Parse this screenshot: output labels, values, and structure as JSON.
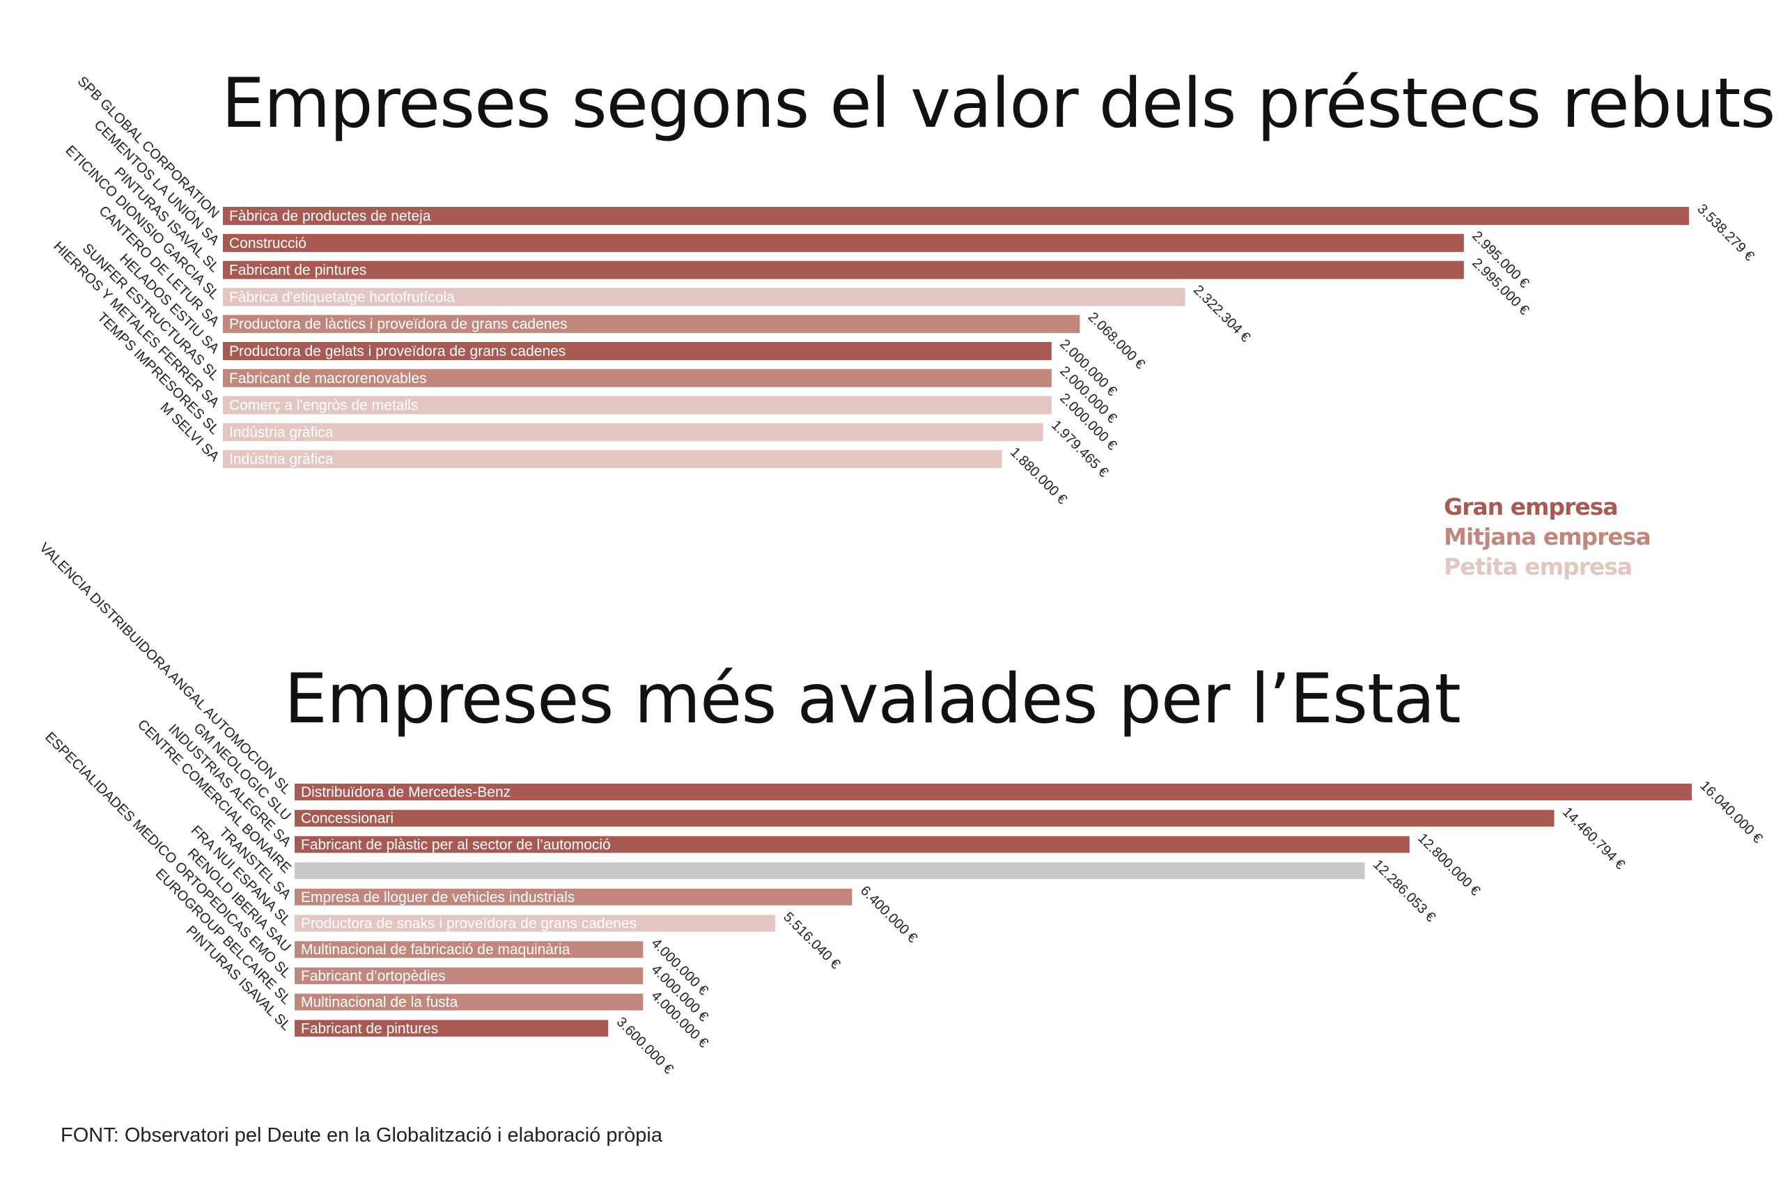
{
  "colors": {
    "gran": "#a85a52",
    "mitjana": "#c1877d",
    "petita": "#e3c6c1",
    "none": "#c8c8c8"
  },
  "legend": [
    {
      "key": "gran",
      "label": "Gran empresa"
    },
    {
      "key": "mitjana",
      "label": "Mitjana empresa"
    },
    {
      "key": "petita",
      "label": "Petita empresa"
    }
  ],
  "source": "FONT: Observatori pel Deute en la Globalització i elaboració pròpia",
  "chart_data": [
    {
      "type": "bar",
      "orientation": "horizontal",
      "title": "Empreses segons el valor dels préstecs rebuts",
      "categories": [
        "SPB GLOBAL CORPORATION",
        "CEMENTOS LA UNIÓN SA",
        "PINTURAS ISAVAL SL",
        "ETICINCO DIONISIO GARCIA SL",
        "CANTERO DE LETUR SA",
        "HELADOS ESTIU SA",
        "SUNFER ESTRUCTURAS SL",
        "HIERROS Y METALES FERRER SA",
        "TEMPS IMPRESORES SL",
        "M SELVI SA"
      ],
      "sectors": [
        "Fàbrica de productes de neteja",
        "Construcció",
        "Fabricant de pintures",
        "Fàbrica d'etiquetatge hortofrutícola",
        "Productora de làctics i proveïdora de grans cadenes",
        "Productora de gelats i proveïdora de grans cadenes",
        "Fabricant de macrorenovables",
        "Comerç a l'engròs de metalls",
        "Indústria gràfica",
        "Indústria gràfica"
      ],
      "size": [
        "gran",
        "gran",
        "gran",
        "petita",
        "mitjana",
        "gran",
        "mitjana",
        "petita",
        "petita",
        "petita"
      ],
      "values": [
        3538279,
        2995000,
        2995000,
        2322304,
        2068000,
        2000000,
        2000000,
        2000000,
        1979465,
        1880000
      ],
      "value_labels": [
        "3.538.279 €",
        "2.995.000 €",
        "2.995.000 €",
        "2.322.304 €",
        "2.068.000 €",
        "2.000.000 €",
        "2.000.000 €",
        "2.000.000 €",
        "1.979.465 €",
        "1.880.000 €"
      ],
      "xlim": [
        0,
        3538279
      ]
    },
    {
      "type": "bar",
      "orientation": "horizontal",
      "title": "Empreses més avalades per l’Estat",
      "categories": [
        "VALENCIA DISTRIBUIDORA ANGAL AUTOMOCION SL",
        "GM NEOLOGIC SLU",
        "INDUSTRIAS ALEGRE SA",
        "CENTRE COMERCIAL BONAIRE",
        "TRANSTEL SA",
        "FRA NUI ESPANA SL",
        "RENOLD IBERIA SAU",
        "ESPECIALIDADES MEDICO ORTOPEDICAS EMO SL",
        "EUROGROUP BELCAIRE SL",
        "PINTURAS ISAVAL SL"
      ],
      "sectors": [
        "Distribuïdora de Mercedes-Benz",
        "Concessionari",
        "Fabricant de plàstic per al sector de l’automoció",
        "",
        "Empresa de lloguer de vehicles industrials",
        "Productora de snaks i proveïdora de grans cadenes",
        "Multinacional de fabricació de maquinària",
        "Fabricant d’ortopèdies",
        "Multinacional de la fusta",
        "Fabricant de pintures"
      ],
      "size": [
        "gran",
        "gran",
        "gran",
        "none",
        "mitjana",
        "petita",
        "mitjana",
        "mitjana",
        "mitjana",
        "gran"
      ],
      "values": [
        16040000,
        14460794,
        12800000,
        12286053,
        6400000,
        5516040,
        4000000,
        4000000,
        4000000,
        3600000
      ],
      "value_labels": [
        "16.040.000 €",
        "14.460.794 €",
        "12.800.000 €",
        "12.286.053 €",
        "6.400.000 €",
        "5.516.040 €",
        "4.000.000 €",
        "4.000.000 €",
        "4.000.000 €",
        "3.600.000 €"
      ],
      "xlim": [
        0,
        16040000
      ]
    }
  ]
}
